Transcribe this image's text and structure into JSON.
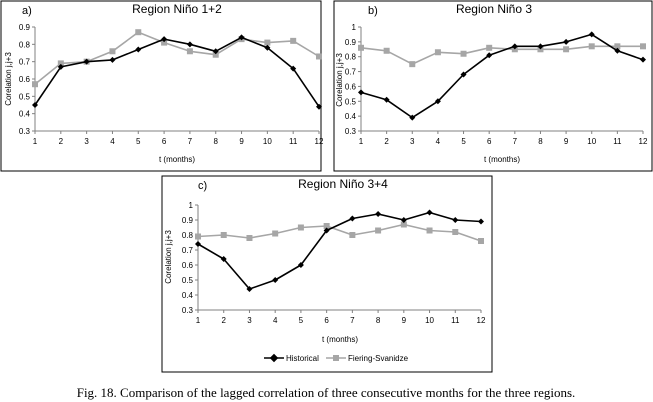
{
  "caption": "Fig. 18. Comparison of the lagged correlation of  three consecutive months for the three regions.",
  "colors": {
    "historical": "#000000",
    "fiering": "#a6a6a6",
    "axis": "#808080",
    "frame": "#000000"
  },
  "legend": {
    "historical": "Historical",
    "fiering": "Fiering-Svanidze"
  },
  "chart_data": [
    {
      "type": "line",
      "panel": "a)",
      "title": "Region Niño 1+2",
      "xlabel": "t (months)",
      "ylabel": "Corelation j,j+3",
      "x": [
        1,
        2,
        3,
        4,
        5,
        6,
        7,
        8,
        9,
        10,
        11,
        12
      ],
      "xticks": [
        "1",
        "2",
        "3",
        "4",
        "5",
        "6",
        "7",
        "8",
        "9",
        "10",
        "11",
        "12"
      ],
      "ylim": [
        0.3,
        0.9
      ],
      "yticks": [
        "0.3",
        "0.4",
        "0.5",
        "0.6",
        "0.7",
        "0.8",
        "0.9"
      ],
      "series": [
        {
          "name": "Historical",
          "values": [
            0.45,
            0.67,
            0.7,
            0.71,
            0.77,
            0.83,
            0.8,
            0.76,
            0.84,
            0.78,
            0.66,
            0.44
          ]
        },
        {
          "name": "Fiering-Svanidze",
          "values": [
            0.57,
            0.69,
            0.7,
            0.76,
            0.87,
            0.81,
            0.76,
            0.74,
            0.83,
            0.81,
            0.82,
            0.73
          ]
        }
      ]
    },
    {
      "type": "line",
      "panel": "b)",
      "title": "Region Niño 3",
      "xlabel": "t (months)",
      "ylabel": "Corelation j,j+3",
      "x": [
        1,
        2,
        3,
        4,
        5,
        6,
        7,
        8,
        9,
        10,
        11,
        12
      ],
      "xticks": [
        "1",
        "2",
        "3",
        "4",
        "5",
        "6",
        "7",
        "8",
        "9",
        "10",
        "11",
        "12"
      ],
      "ylim": [
        0.3,
        1.0
      ],
      "yticks": [
        "0.3",
        "0.4",
        "0.5",
        "0.6",
        "0.7",
        "0.8",
        "0.9",
        "1"
      ],
      "series": [
        {
          "name": "Historical",
          "values": [
            0.56,
            0.51,
            0.39,
            0.5,
            0.68,
            0.81,
            0.87,
            0.87,
            0.9,
            0.95,
            0.84,
            0.78
          ]
        },
        {
          "name": "Fiering-Svanidze",
          "values": [
            0.86,
            0.84,
            0.75,
            0.83,
            0.82,
            0.86,
            0.85,
            0.85,
            0.85,
            0.87,
            0.87,
            0.87
          ]
        }
      ]
    },
    {
      "type": "line",
      "panel": "c)",
      "title": "Region Niño 3+4",
      "xlabel": "t (months)",
      "ylabel": "Corelation j,j+3",
      "x": [
        1,
        2,
        3,
        4,
        5,
        6,
        7,
        8,
        9,
        10,
        11,
        12
      ],
      "xticks": [
        "1",
        "2",
        "3",
        "4",
        "5",
        "6",
        "7",
        "8",
        "9",
        "10",
        "11",
        "12"
      ],
      "ylim": [
        0.3,
        1.0
      ],
      "yticks": [
        "0.3",
        "0.4",
        "0.5",
        "0.6",
        "0.7",
        "0.8",
        "0.9",
        "1"
      ],
      "series": [
        {
          "name": "Historical",
          "values": [
            0.74,
            0.64,
            0.44,
            0.5,
            0.6,
            0.83,
            0.91,
            0.94,
            0.9,
            0.95,
            0.9,
            0.89
          ]
        },
        {
          "name": "Fiering-Svanidze",
          "values": [
            0.79,
            0.8,
            0.78,
            0.81,
            0.85,
            0.86,
            0.8,
            0.83,
            0.87,
            0.83,
            0.82,
            0.76
          ]
        }
      ]
    }
  ]
}
